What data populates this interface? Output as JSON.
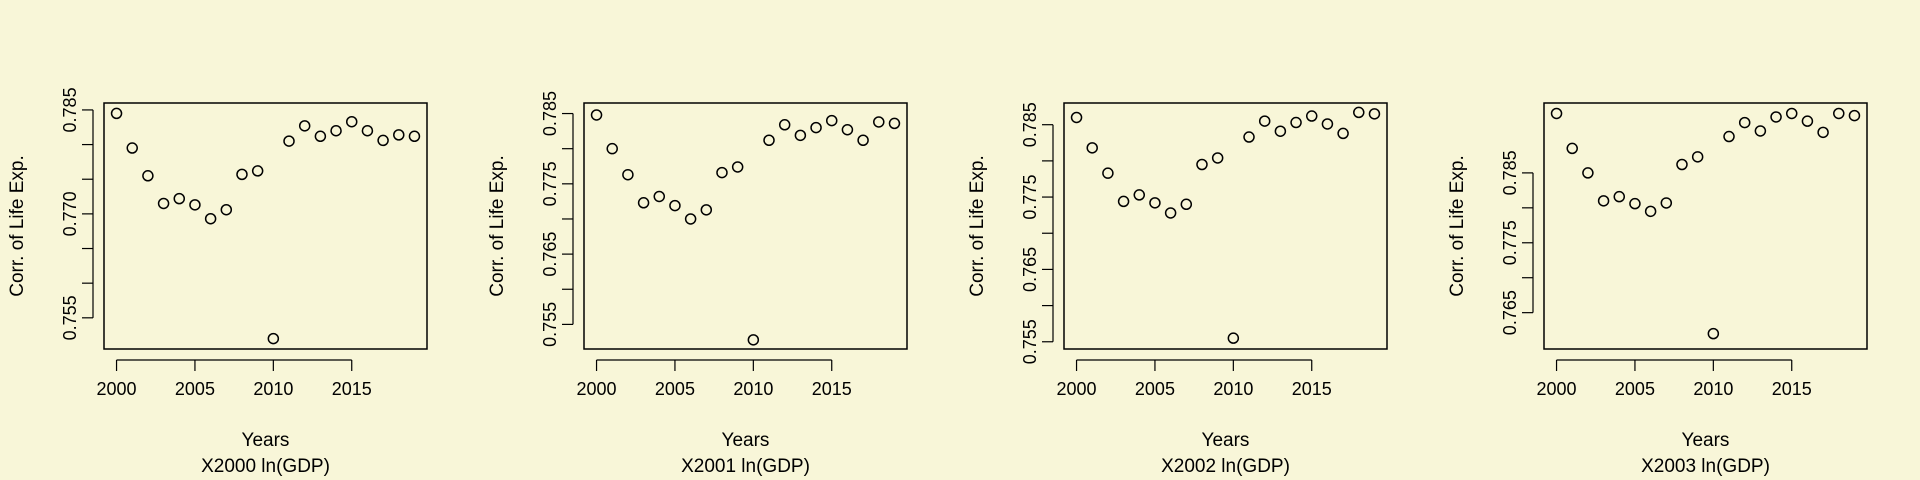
{
  "colors": {
    "background": "#f8f6d8",
    "ink": "#000000"
  },
  "chart_data": [
    {
      "type": "scatter",
      "xlabel": "Years",
      "ylabel": "Corr. of Life Exp.",
      "caption": "X2000 ln(GDP)",
      "xlim": [
        1999.2,
        2019.8
      ],
      "ylim": [
        0.7505,
        0.786
      ],
      "xticks": [
        2000,
        2005,
        2010,
        2015
      ],
      "yticks": [
        0.755,
        0.76,
        0.765,
        0.77,
        0.775,
        0.78,
        0.785
      ],
      "ytick_labels": [
        "0.755",
        "",
        "",
        "0.770",
        "",
        "",
        "0.785"
      ],
      "series": [
        {
          "x": [
            2000,
            2001,
            2002,
            2003,
            2004,
            2005,
            2006,
            2007,
            2008,
            2009,
            2010,
            2011,
            2012,
            2013,
            2014,
            2015,
            2016,
            2017,
            2018,
            2019
          ],
          "y": [
            0.7845,
            0.7795,
            0.7755,
            0.7715,
            0.7722,
            0.7713,
            0.7693,
            0.7706,
            0.7757,
            0.7762,
            0.752,
            0.7805,
            0.7827,
            0.7812,
            0.782,
            0.7833,
            0.782,
            0.7806,
            0.7814,
            0.7812
          ]
        }
      ]
    },
    {
      "type": "scatter",
      "xlabel": "Years",
      "ylabel": "Corr. of Life Exp.",
      "caption": "X2001 ln(GDP)",
      "xlim": [
        1999.2,
        2019.8
      ],
      "ylim": [
        0.7515,
        0.7865
      ],
      "xticks": [
        2000,
        2005,
        2010,
        2015
      ],
      "yticks": [
        0.755,
        0.76,
        0.765,
        0.77,
        0.775,
        0.78,
        0.785
      ],
      "ytick_labels": [
        "0.755",
        "",
        "0.765",
        "",
        "0.775",
        "",
        "0.785"
      ],
      "series": [
        {
          "x": [
            2000,
            2001,
            2002,
            2003,
            2004,
            2005,
            2006,
            2007,
            2008,
            2009,
            2010,
            2011,
            2012,
            2013,
            2014,
            2015,
            2016,
            2017,
            2018,
            2019
          ],
          "y": [
            0.7848,
            0.78,
            0.7763,
            0.7723,
            0.7732,
            0.7719,
            0.77,
            0.7713,
            0.7766,
            0.7774,
            0.7528,
            0.7812,
            0.7834,
            0.7819,
            0.783,
            0.784,
            0.7827,
            0.7812,
            0.7838,
            0.7836
          ]
        }
      ]
    },
    {
      "type": "scatter",
      "xlabel": "Years",
      "ylabel": "Corr. of Life Exp.",
      "caption": "X2002 ln(GDP)",
      "xlim": [
        1999.2,
        2019.8
      ],
      "ylim": [
        0.754,
        0.788
      ],
      "xticks": [
        2000,
        2005,
        2010,
        2015
      ],
      "yticks": [
        0.755,
        0.76,
        0.765,
        0.77,
        0.775,
        0.78,
        0.785
      ],
      "ytick_labels": [
        "0.755",
        "",
        "0.765",
        "",
        "0.775",
        "",
        "0.785"
      ],
      "series": [
        {
          "x": [
            2000,
            2001,
            2002,
            2003,
            2004,
            2005,
            2006,
            2007,
            2008,
            2009,
            2010,
            2011,
            2012,
            2013,
            2014,
            2015,
            2016,
            2017,
            2018,
            2019
          ],
          "y": [
            0.786,
            0.7818,
            0.7783,
            0.7744,
            0.7753,
            0.7742,
            0.7728,
            0.774,
            0.7795,
            0.7804,
            0.7555,
            0.7833,
            0.7855,
            0.7841,
            0.7853,
            0.7862,
            0.7851,
            0.7838,
            0.7867,
            0.7865
          ]
        }
      ]
    },
    {
      "type": "scatter",
      "xlabel": "Years",
      "ylabel": "Corr. of Life Exp.",
      "caption": "X2003 ln(GDP)",
      "xlim": [
        1999.2,
        2019.8
      ],
      "ylim": [
        0.7598,
        0.795
      ],
      "xticks": [
        2000,
        2005,
        2010,
        2015
      ],
      "yticks": [
        0.765,
        0.77,
        0.775,
        0.78,
        0.785
      ],
      "ytick_labels": [
        "0.765",
        "",
        "0.775",
        "",
        "0.785"
      ],
      "series": [
        {
          "x": [
            2000,
            2001,
            2002,
            2003,
            2004,
            2005,
            2006,
            2007,
            2008,
            2009,
            2010,
            2011,
            2012,
            2013,
            2014,
            2015,
            2016,
            2017,
            2018,
            2019
          ],
          "y": [
            0.7935,
            0.7885,
            0.785,
            0.781,
            0.7816,
            0.7806,
            0.7795,
            0.7807,
            0.7862,
            0.7873,
            0.762,
            0.7902,
            0.7922,
            0.791,
            0.793,
            0.7935,
            0.7924,
            0.7908,
            0.7935,
            0.7932
          ]
        }
      ]
    }
  ]
}
